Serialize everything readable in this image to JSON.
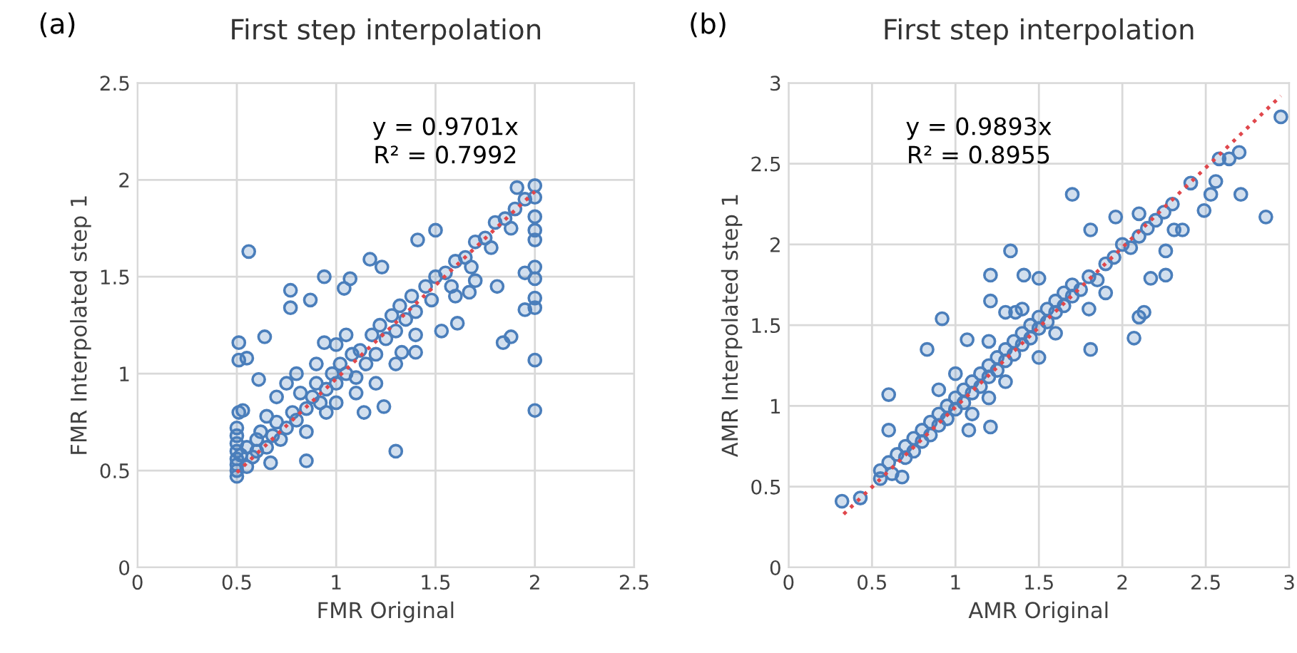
{
  "chart_data": [
    {
      "type": "scatter",
      "title": "First step interpolation",
      "xlabel": "FMR Original",
      "ylabel": "FMR Interpolated step 1",
      "annotations": [
        "(a)",
        "y = 0.9701x\nR² = 0.7992"
      ],
      "xlim": [
        0,
        2.5
      ],
      "ylim": [
        0,
        2.5
      ],
      "xticks": [
        0,
        0.5,
        1,
        1.5,
        2,
        2.5
      ],
      "yticks": [
        0,
        0.5,
        1,
        1.5,
        2,
        2.5
      ],
      "grid": true,
      "legend": false,
      "series": [
        {
          "marker": "circle",
          "color": "#4a7ebb",
          "x": [
            0.5,
            0.5,
            0.5,
            0.5,
            0.5,
            0.5,
            0.5,
            0.5,
            0.52,
            0.55,
            0.55,
            0.58,
            0.6,
            0.6,
            0.62,
            0.65,
            0.68,
            0.7,
            0.72,
            0.75,
            0.78,
            0.8,
            0.82,
            0.85,
            0.88,
            0.9,
            0.92,
            0.95,
            0.98,
            1.0,
            1.02,
            1.05,
            1.08,
            1.1,
            1.12,
            1.15,
            1.18,
            1.2,
            1.22,
            1.25,
            1.28,
            1.3,
            1.32,
            1.35,
            1.38,
            1.4,
            1.45,
            1.48,
            1.5,
            1.55,
            1.58,
            1.6,
            1.65,
            1.68,
            1.7,
            1.75,
            1.78,
            1.8,
            1.85,
            1.88,
            1.9,
            1.95,
            0.7,
            0.75,
            0.8,
            0.9,
            1.0,
            1.05,
            0.85,
            0.95,
            1.0,
            1.1,
            1.2,
            1.3,
            1.4,
            1.6,
            1.7,
            0.65,
            0.56,
            0.51,
            0.51,
            0.55,
            0.64,
            0.61,
            0.51,
            0.53,
            0.85,
            1.3,
            0.77,
            0.77,
            0.87,
            0.94,
            1.07,
            1.04,
            1.17,
            1.23,
            1.41,
            1.5,
            1.61,
            1.53,
            1.67,
            1.81,
            1.84,
            1.88,
            2.0,
            2.0,
            2.0,
            2.0,
            2.0,
            2.0,
            2.0,
            2.0,
            2.0,
            2.0,
            2.0,
            1.91,
            1.95,
            1.95,
            1.14,
            1.24,
            1.4,
            1.33,
            0.94,
            0.67
          ],
          "values": [
            0.47,
            0.5,
            0.53,
            0.56,
            0.6,
            0.64,
            0.68,
            0.72,
            0.58,
            0.52,
            0.62,
            0.57,
            0.6,
            0.66,
            0.7,
            0.62,
            0.68,
            0.75,
            0.66,
            0.72,
            0.8,
            0.76,
            0.9,
            0.82,
            0.88,
            0.95,
            0.85,
            0.92,
            1.0,
            0.95,
            1.05,
            1.0,
            1.1,
            0.98,
            1.12,
            1.05,
            1.2,
            1.1,
            1.25,
            1.18,
            1.3,
            1.22,
            1.35,
            1.28,
            1.4,
            1.32,
            1.45,
            1.38,
            1.5,
            1.52,
            1.45,
            1.58,
            1.6,
            1.55,
            1.68,
            1.7,
            1.65,
            1.78,
            1.8,
            1.75,
            1.85,
            1.9,
            0.88,
            0.95,
            1.0,
            1.05,
            1.15,
            1.2,
            0.7,
            0.8,
            0.85,
            0.9,
            0.95,
            1.05,
            1.2,
            1.4,
            1.48,
            0.78,
            1.63,
            1.16,
            1.07,
            1.08,
            1.19,
            0.97,
            0.8,
            0.81,
            0.55,
            0.6,
            1.43,
            1.34,
            1.38,
            1.5,
            1.49,
            1.44,
            1.59,
            1.55,
            1.69,
            1.74,
            1.26,
            1.22,
            1.42,
            1.45,
            1.16,
            1.19,
            1.07,
            0.81,
            1.34,
            1.39,
            1.49,
            1.55,
            1.69,
            1.74,
            1.81,
            1.91,
            1.97,
            1.96,
            1.33,
            1.52,
            0.8,
            0.83,
            1.11,
            1.11,
            1.16,
            0.54
          ]
        },
        {
          "type": "line",
          "line_style": "dotted",
          "color": "#e0474c",
          "x": [
            0.5,
            2.0
          ],
          "values": [
            0.49,
            1.94
          ]
        }
      ]
    },
    {
      "type": "scatter",
      "title": "First step interpolation",
      "xlabel": "AMR Original",
      "ylabel": "AMR Interpolated step 1",
      "annotations": [
        "(b)",
        "y = 0.9893x\nR² = 0.8955"
      ],
      "xlim": [
        0,
        3
      ],
      "ylim": [
        0,
        3
      ],
      "xticks": [
        0,
        0.5,
        1,
        1.5,
        2,
        2.5,
        3
      ],
      "yticks": [
        0,
        0.5,
        1,
        1.5,
        2,
        2.5,
        3
      ],
      "grid": true,
      "legend": false,
      "series": [
        {
          "marker": "circle",
          "color": "#4a7ebb",
          "x": [
            0.55,
            0.6,
            0.62,
            0.65,
            0.7,
            0.7,
            0.75,
            0.75,
            0.8,
            0.8,
            0.85,
            0.85,
            0.9,
            0.9,
            0.95,
            0.95,
            1.0,
            1.0,
            1.05,
            1.05,
            1.1,
            1.1,
            1.15,
            1.15,
            1.2,
            1.2,
            1.25,
            1.25,
            1.3,
            1.3,
            1.35,
            1.35,
            1.4,
            1.4,
            1.45,
            1.45,
            1.5,
            1.5,
            1.55,
            1.55,
            1.6,
            1.6,
            1.65,
            1.65,
            1.7,
            1.7,
            1.75,
            1.8,
            1.85,
            1.9,
            1.95,
            2.0,
            2.05,
            2.1,
            2.15,
            2.2,
            2.25,
            2.3,
            0.9,
            1.0,
            1.1,
            1.2,
            1.3,
            1.5,
            1.6,
            1.4,
            1.2,
            1.8,
            1.9,
            0.32,
            0.43,
            0.55,
            0.68,
            0.6,
            0.6,
            0.92,
            0.83,
            1.07,
            1.08,
            1.21,
            1.21,
            1.21,
            1.33,
            1.41,
            1.5,
            1.3,
            1.36,
            1.7,
            1.81,
            1.81,
            1.96,
            2.1,
            2.07,
            2.1,
            2.13,
            2.17,
            2.26,
            2.26,
            2.31,
            2.36,
            2.41,
            2.49,
            2.53,
            2.56,
            2.58,
            2.64,
            2.7,
            2.71,
            2.86,
            2.95
          ],
          "values": [
            0.6,
            0.65,
            0.58,
            0.7,
            0.68,
            0.75,
            0.72,
            0.8,
            0.78,
            0.85,
            0.82,
            0.9,
            0.88,
            0.95,
            0.92,
            1.0,
            0.98,
            1.05,
            1.02,
            1.1,
            1.08,
            1.15,
            1.12,
            1.2,
            1.18,
            1.25,
            1.22,
            1.3,
            1.28,
            1.35,
            1.32,
            1.4,
            1.38,
            1.45,
            1.42,
            1.5,
            1.48,
            1.55,
            1.52,
            1.6,
            1.58,
            1.65,
            1.62,
            1.7,
            1.68,
            1.75,
            1.72,
            1.8,
            1.78,
            1.88,
            1.92,
            2.0,
            1.98,
            2.05,
            2.1,
            2.15,
            2.2,
            2.25,
            1.1,
            1.2,
            0.95,
            1.05,
            1.15,
            1.3,
            1.45,
            1.6,
            1.4,
            1.6,
            1.7,
            0.41,
            0.43,
            0.55,
            0.56,
            0.85,
            1.07,
            1.54,
            1.35,
            1.41,
            0.85,
            0.87,
            1.65,
            1.81,
            1.96,
            1.81,
            1.79,
            1.58,
            1.58,
            2.31,
            2.09,
            1.35,
            2.17,
            2.19,
            1.42,
            1.55,
            1.58,
            1.79,
            1.81,
            1.96,
            2.09,
            2.09,
            2.38,
            2.21,
            2.31,
            2.39,
            2.53,
            2.53,
            2.57,
            2.31,
            2.17,
            2.79
          ]
        },
        {
          "type": "line",
          "line_style": "dotted",
          "color": "#e0474c",
          "x": [
            0.33,
            2.95
          ],
          "values": [
            0.33,
            2.92
          ]
        }
      ]
    }
  ]
}
